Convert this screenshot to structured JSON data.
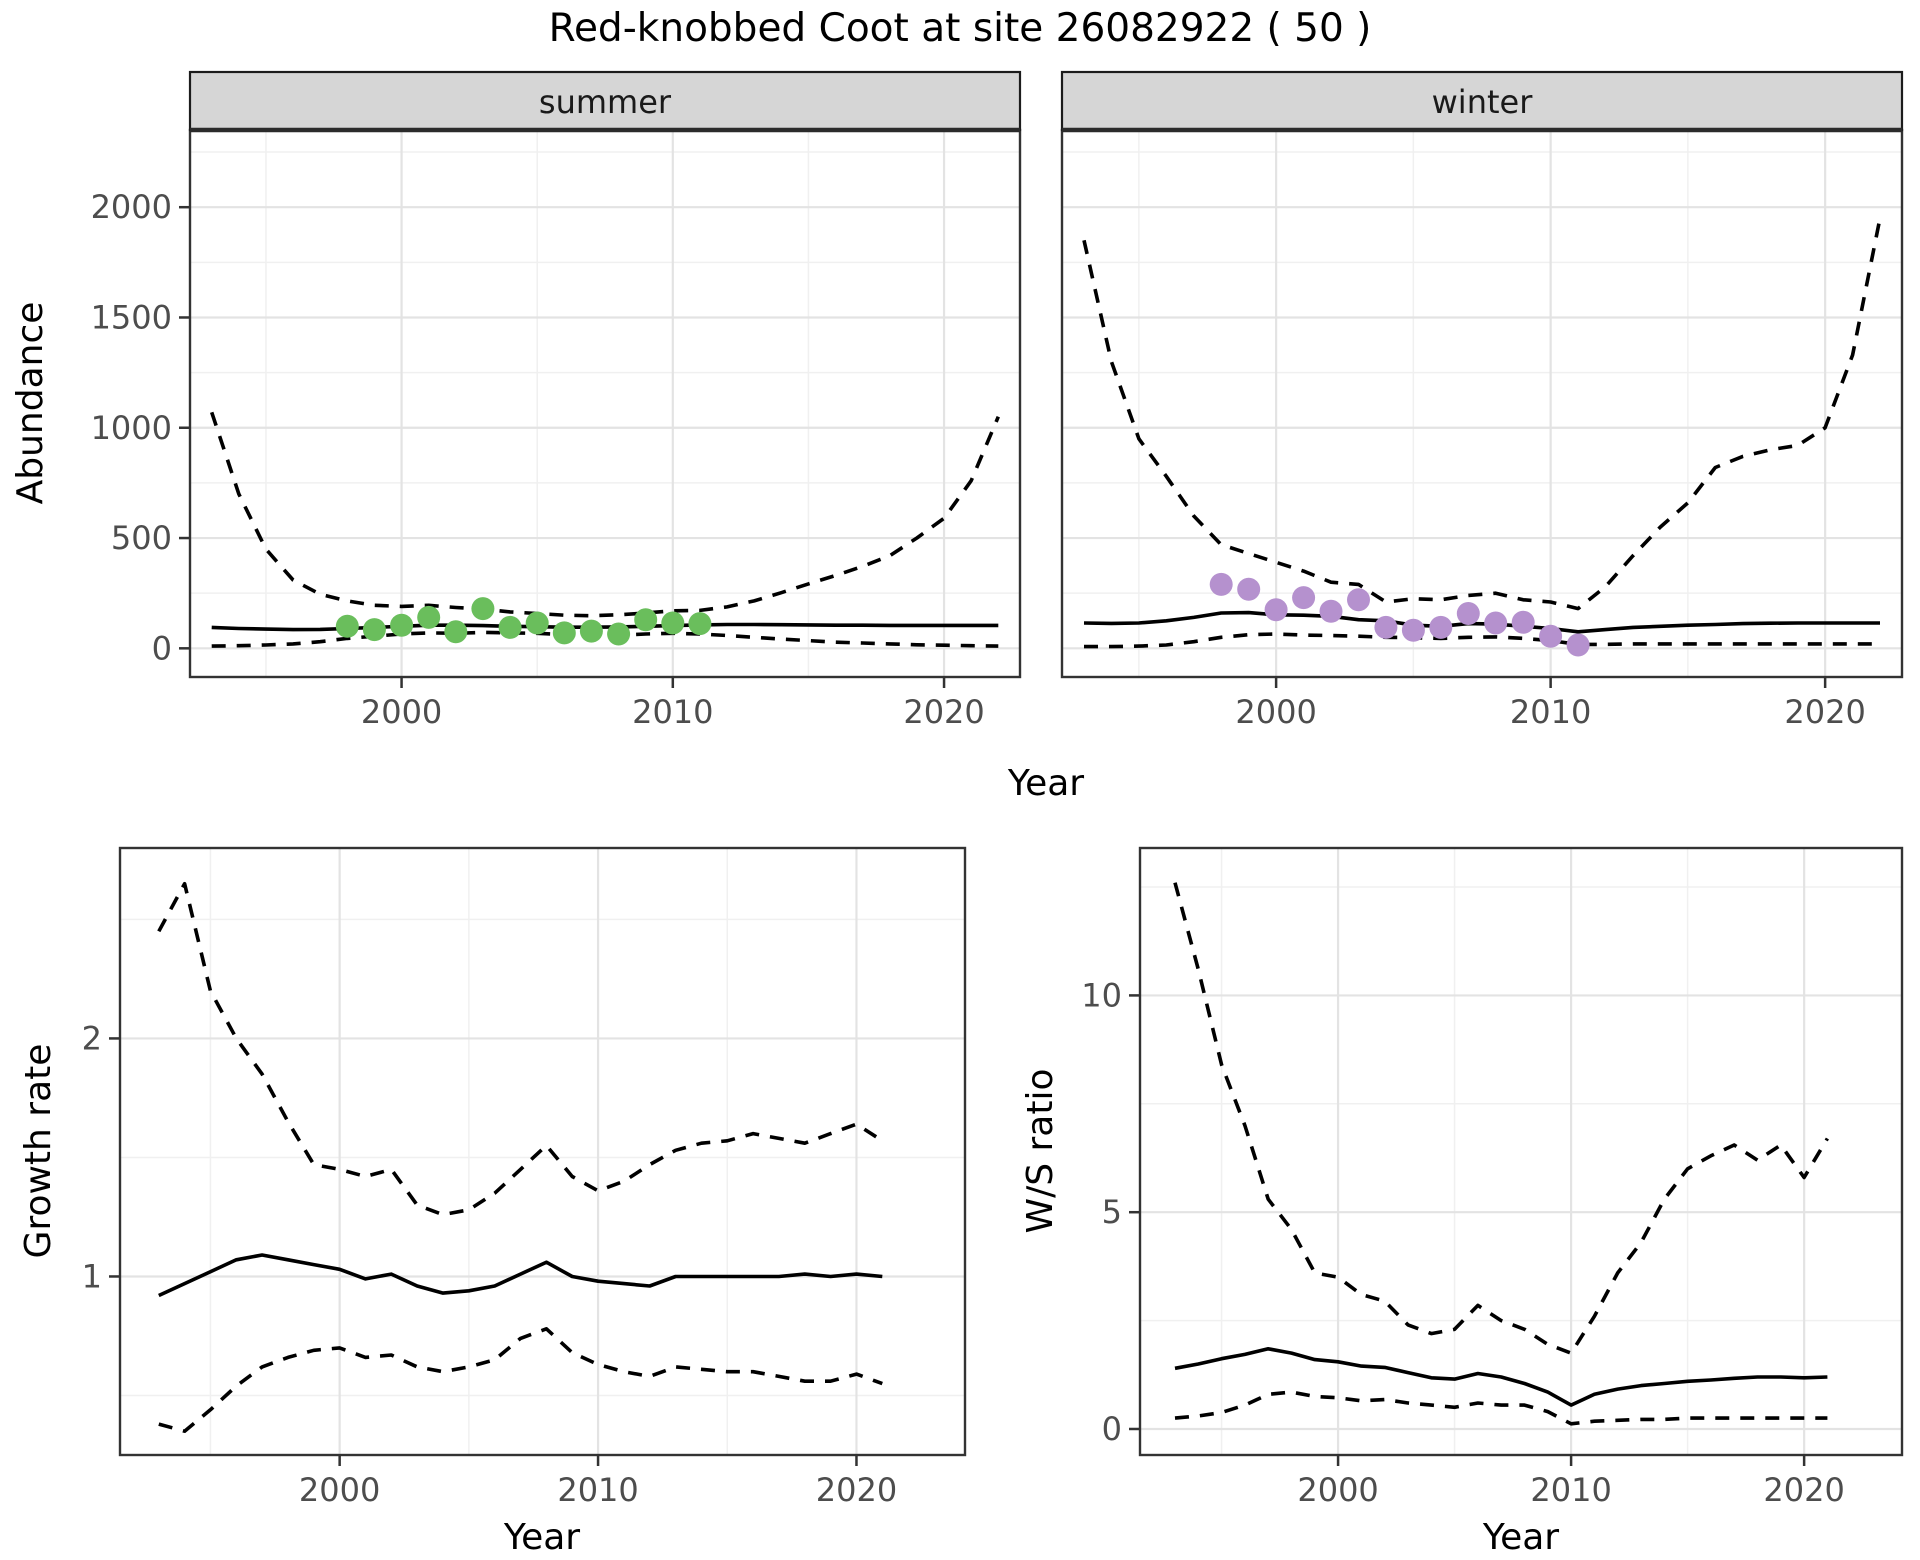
{
  "title": "Red-knobbed Coot at site 26082922 ( 50 )",
  "colors": {
    "summer_point": "#6ABE5C",
    "winter_point": "#B591CE",
    "grid_major": "#E3E3E3",
    "grid_minor": "#F0F0F0",
    "panel_border": "#333333",
    "strip_fill": "#D6D6D6",
    "strip_border": "#1C1C1C",
    "axis_text": "#4D4D4D",
    "line": "#000000"
  },
  "chart_data": [
    {
      "id": "abundance_summer",
      "type": "line",
      "facet_label": "summer",
      "xlabel": "Year",
      "ylabel": "Abundance",
      "xlim": [
        1992.2,
        2022.8
      ],
      "ylim": [
        -130,
        2350
      ],
      "x_ticks": [
        2000,
        2010,
        2020
      ],
      "x_minor_ticks": [
        1995,
        2005,
        2015
      ],
      "y_ticks": [
        0,
        500,
        1000,
        1500,
        2000
      ],
      "y_minor_ticks": [
        250,
        750,
        1250,
        1750,
        2250
      ],
      "years": [
        1993,
        1994,
        1995,
        1996,
        1997,
        1998,
        1999,
        2000,
        2001,
        2002,
        2003,
        2004,
        2005,
        2006,
        2007,
        2008,
        2009,
        2010,
        2011,
        2012,
        2013,
        2014,
        2015,
        2016,
        2017,
        2018,
        2019,
        2020,
        2021,
        2022
      ],
      "series": [
        {
          "name": "median",
          "style": "solid",
          "values": [
            95,
            90,
            87,
            85,
            86,
            90,
            95,
            100,
            105,
            105,
            103,
            100,
            98,
            96,
            96,
            97,
            100,
            103,
            106,
            108,
            108,
            107,
            106,
            105,
            105,
            104,
            104,
            104,
            104,
            104
          ]
        },
        {
          "name": "upper_95ci",
          "style": "dashed",
          "values": [
            1070,
            700,
            450,
            310,
            245,
            215,
            195,
            190,
            195,
            185,
            178,
            165,
            158,
            150,
            148,
            152,
            160,
            170,
            172,
            188,
            215,
            252,
            292,
            330,
            372,
            420,
            500,
            590,
            760,
            1050
          ]
        },
        {
          "name": "lower_95ci",
          "style": "dashed",
          "values": [
            10,
            12,
            15,
            20,
            30,
            45,
            55,
            65,
            70,
            68,
            72,
            70,
            68,
            62,
            60,
            60,
            65,
            68,
            65,
            58,
            50,
            42,
            35,
            28,
            24,
            20,
            16,
            14,
            12,
            10
          ]
        }
      ],
      "points": {
        "name": "observed_counts",
        "color": "summer_point",
        "data": [
          [
            1998,
            100
          ],
          [
            1999,
            85
          ],
          [
            2000,
            105
          ],
          [
            2001,
            140
          ],
          [
            2002,
            75
          ],
          [
            2003,
            180
          ],
          [
            2004,
            95
          ],
          [
            2005,
            115
          ],
          [
            2006,
            70
          ],
          [
            2007,
            78
          ],
          [
            2008,
            65
          ],
          [
            2009,
            130
          ],
          [
            2010,
            115
          ],
          [
            2011,
            112
          ]
        ]
      }
    },
    {
      "id": "abundance_winter",
      "type": "line",
      "facet_label": "winter",
      "xlabel": "Year",
      "ylabel": "",
      "xlim": [
        1992.2,
        2022.8
      ],
      "ylim": [
        -130,
        2350
      ],
      "x_ticks": [
        2000,
        2010,
        2020
      ],
      "x_minor_ticks": [
        1995,
        2005,
        2015
      ],
      "y_ticks": [
        0,
        500,
        1000,
        1500,
        2000
      ],
      "y_minor_ticks": [
        250,
        750,
        1250,
        1750,
        2250
      ],
      "years": [
        1993,
        1994,
        1995,
        1996,
        1997,
        1998,
        1999,
        2000,
        2001,
        2002,
        2003,
        2004,
        2005,
        2006,
        2007,
        2008,
        2009,
        2010,
        2011,
        2012,
        2013,
        2014,
        2015,
        2016,
        2017,
        2018,
        2019,
        2020,
        2021,
        2022
      ],
      "series": [
        {
          "name": "median",
          "style": "solid",
          "values": [
            115,
            113,
            115,
            125,
            140,
            160,
            162,
            152,
            150,
            145,
            130,
            125,
            105,
            100,
            112,
            110,
            100,
            90,
            75,
            85,
            95,
            100,
            105,
            108,
            112,
            114,
            115,
            115,
            115,
            115
          ]
        },
        {
          "name": "upper_95ci",
          "style": "dashed",
          "values": [
            1850,
            1300,
            950,
            780,
            600,
            470,
            430,
            390,
            350,
            300,
            290,
            210,
            225,
            220,
            240,
            250,
            220,
            210,
            180,
            280,
            420,
            550,
            660,
            820,
            870,
            900,
            920,
            1000,
            1330,
            1950
          ]
        },
        {
          "name": "lower_95ci",
          "style": "dashed",
          "values": [
            8,
            8,
            10,
            15,
            30,
            50,
            62,
            65,
            60,
            58,
            55,
            50,
            48,
            45,
            50,
            52,
            45,
            35,
            18,
            18,
            20,
            20,
            20,
            20,
            20,
            20,
            20,
            20,
            20,
            20
          ]
        }
      ],
      "points": {
        "name": "observed_counts",
        "color": "winter_point",
        "data": [
          [
            1998,
            290
          ],
          [
            1999,
            268
          ],
          [
            2000,
            175
          ],
          [
            2001,
            230
          ],
          [
            2002,
            168
          ],
          [
            2003,
            220
          ],
          [
            2004,
            95
          ],
          [
            2005,
            82
          ],
          [
            2006,
            95
          ],
          [
            2007,
            158
          ],
          [
            2008,
            115
          ],
          [
            2009,
            118
          ],
          [
            2010,
            55
          ],
          [
            2011,
            15
          ]
        ]
      }
    },
    {
      "id": "growth_rate",
      "type": "line",
      "facet_label": "",
      "xlabel": "Year",
      "ylabel": "Growth rate",
      "xlim": [
        1991.5,
        2024.2
      ],
      "ylim": [
        0.25,
        2.8
      ],
      "x_ticks": [
        2000,
        2010,
        2020
      ],
      "x_minor_ticks": [
        1995,
        2005,
        2015
      ],
      "y_ticks": [
        1,
        2
      ],
      "y_minor_ticks": [
        0.5,
        1.5,
        2.5
      ],
      "years": [
        1993,
        1994,
        1995,
        1996,
        1997,
        1998,
        1999,
        2000,
        2001,
        2002,
        2003,
        2004,
        2005,
        2006,
        2007,
        2008,
        2009,
        2010,
        2011,
        2012,
        2013,
        2014,
        2015,
        2016,
        2017,
        2018,
        2019,
        2020,
        2021
      ],
      "series": [
        {
          "name": "median",
          "style": "solid",
          "values": [
            0.92,
            0.97,
            1.02,
            1.07,
            1.09,
            1.07,
            1.05,
            1.03,
            0.99,
            1.01,
            0.96,
            0.93,
            0.94,
            0.96,
            1.01,
            1.06,
            1.0,
            0.98,
            0.97,
            0.96,
            1.0,
            1.0,
            1.0,
            1.0,
            1.0,
            1.01,
            1.0,
            1.01,
            1.0
          ]
        },
        {
          "name": "upper_95ci",
          "style": "dashed",
          "values": [
            2.45,
            2.65,
            2.2,
            2.0,
            1.85,
            1.65,
            1.47,
            1.45,
            1.42,
            1.45,
            1.3,
            1.26,
            1.28,
            1.35,
            1.45,
            1.55,
            1.42,
            1.36,
            1.4,
            1.47,
            1.53,
            1.56,
            1.57,
            1.6,
            1.58,
            1.56,
            1.6,
            1.64,
            1.57
          ]
        },
        {
          "name": "lower_95ci",
          "style": "dashed",
          "values": [
            0.38,
            0.35,
            0.44,
            0.54,
            0.62,
            0.66,
            0.69,
            0.7,
            0.66,
            0.67,
            0.62,
            0.6,
            0.62,
            0.65,
            0.74,
            0.78,
            0.68,
            0.63,
            0.6,
            0.58,
            0.62,
            0.61,
            0.6,
            0.6,
            0.58,
            0.56,
            0.56,
            0.59,
            0.55
          ]
        }
      ],
      "points": null
    },
    {
      "id": "ws_ratio",
      "type": "line",
      "facet_label": "",
      "xlabel": "Year",
      "ylabel": "W/S ratio",
      "xlim": [
        1991.5,
        2024.2
      ],
      "ylim": [
        -0.6,
        13.4
      ],
      "x_ticks": [
        2000,
        2010,
        2020
      ],
      "x_minor_ticks": [
        1995,
        2005,
        2015
      ],
      "y_ticks": [
        0,
        5,
        10
      ],
      "y_minor_ticks": [
        2.5,
        7.5,
        12.5
      ],
      "years": [
        1993,
        1994,
        1995,
        1996,
        1997,
        1998,
        1999,
        2000,
        2001,
        2002,
        2003,
        2004,
        2005,
        2006,
        2007,
        2008,
        2009,
        2010,
        2011,
        2012,
        2013,
        2014,
        2015,
        2016,
        2017,
        2018,
        2019,
        2020,
        2021
      ],
      "series": [
        {
          "name": "median",
          "style": "solid",
          "values": [
            1.4,
            1.5,
            1.62,
            1.72,
            1.85,
            1.75,
            1.6,
            1.55,
            1.45,
            1.42,
            1.3,
            1.18,
            1.15,
            1.28,
            1.2,
            1.05,
            0.85,
            0.55,
            0.8,
            0.92,
            1.0,
            1.05,
            1.1,
            1.13,
            1.17,
            1.2,
            1.2,
            1.18,
            1.2
          ]
        },
        {
          "name": "upper_95ci",
          "style": "dashed",
          "values": [
            12.6,
            10.6,
            8.4,
            7.0,
            5.3,
            4.6,
            3.6,
            3.5,
            3.1,
            2.95,
            2.4,
            2.2,
            2.3,
            2.85,
            2.5,
            2.3,
            1.95,
            1.75,
            2.6,
            3.6,
            4.3,
            5.3,
            6.0,
            6.3,
            6.55,
            6.2,
            6.55,
            5.8,
            6.7
          ]
        },
        {
          "name": "lower_95ci",
          "style": "dashed",
          "values": [
            0.25,
            0.3,
            0.38,
            0.55,
            0.8,
            0.85,
            0.75,
            0.72,
            0.65,
            0.68,
            0.6,
            0.55,
            0.5,
            0.6,
            0.55,
            0.55,
            0.4,
            0.12,
            0.18,
            0.2,
            0.22,
            0.22,
            0.25,
            0.25,
            0.25,
            0.25,
            0.25,
            0.25,
            0.25
          ]
        }
      ],
      "points": null
    }
  ]
}
